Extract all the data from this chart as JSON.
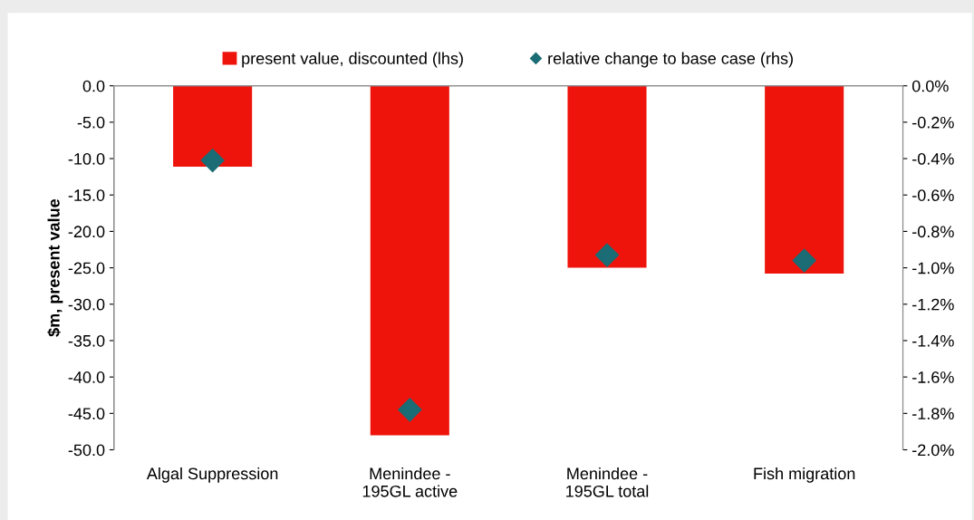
{
  "chart_data": {
    "type": "bar",
    "ylabel": "$m, present value",
    "categories": [
      "Algal Suppression",
      "Menindee -\n195GL active",
      "Menindee -\n195GL total",
      "Fish migration"
    ],
    "series": [
      {
        "name": "present value, discounted (lhs)",
        "color": "#ee140c",
        "values": [
          -11.1,
          -48.0,
          -25.0,
          -25.8
        ]
      },
      {
        "name": "relative change to base case (rhs)",
        "type": "scatter",
        "axis": "y2",
        "color": "#1b6c74",
        "marker": "diamond",
        "values": [
          -0.41,
          -1.78,
          -0.93,
          -0.96
        ]
      }
    ],
    "ylim": [
      -50,
      0
    ],
    "yticks": [
      {
        "value": 0,
        "label": "0.0"
      },
      {
        "value": -5,
        "label": "-5.0"
      },
      {
        "value": -10,
        "label": "-10.0"
      },
      {
        "value": -15,
        "label": "-15.0"
      },
      {
        "value": -20,
        "label": "-20.0"
      },
      {
        "value": -25,
        "label": "-25.0"
      },
      {
        "value": -30,
        "label": "-30.0"
      },
      {
        "value": -35,
        "label": "-35.0"
      },
      {
        "value": -40,
        "label": "-40.0"
      },
      {
        "value": -45,
        "label": "-45.0"
      },
      {
        "value": -50,
        "label": "-50.0"
      }
    ],
    "y2lim": [
      -2,
      0
    ],
    "y2ticks": [
      {
        "value": 0,
        "label": "0.0%"
      },
      {
        "value": -0.2,
        "label": "-0.2%"
      },
      {
        "value": -0.4,
        "label": "-0.4%"
      },
      {
        "value": -0.6,
        "label": "-0.6%"
      },
      {
        "value": -0.8,
        "label": "-0.8%"
      },
      {
        "value": -1.0,
        "label": "-1.0%"
      },
      {
        "value": -1.2,
        "label": "-1.2%"
      },
      {
        "value": -1.4,
        "label": "-1.4%"
      },
      {
        "value": -1.6,
        "label": "-1.6%"
      },
      {
        "value": -1.8,
        "label": "-1.8%"
      },
      {
        "value": -2.0,
        "label": "-2.0%"
      }
    ],
    "legend": "top",
    "grid": false
  }
}
